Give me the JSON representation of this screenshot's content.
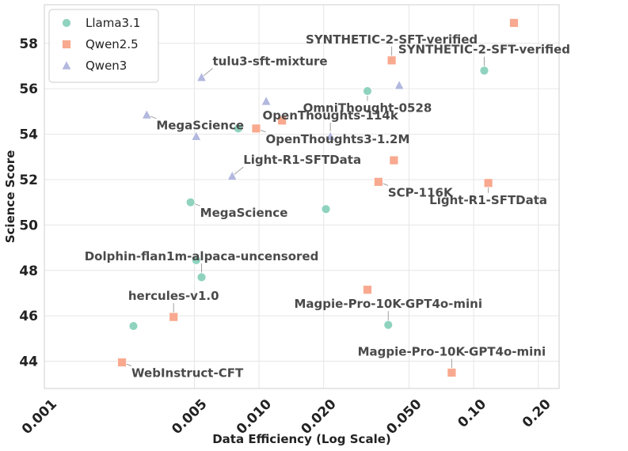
{
  "chart_data": {
    "type": "scatter",
    "title": "",
    "xlabel": "Data Efficiency (Log Scale)",
    "ylabel": "Science Score",
    "xscale": "log",
    "xlim": [
      0.001,
      0.25
    ],
    "ylim": [
      42.8,
      59.7
    ],
    "grid": true,
    "legend_position": "top-left",
    "x_ticks": [
      {
        "value": 0.001,
        "label": "0.001"
      },
      {
        "value": 0.005,
        "label": "0.005"
      },
      {
        "value": 0.01,
        "label": "0.010"
      },
      {
        "value": 0.02,
        "label": "0.020"
      },
      {
        "value": 0.05,
        "label": "0.050"
      },
      {
        "value": 0.1,
        "label": "0.10"
      },
      {
        "value": 0.2,
        "label": "0.20"
      }
    ],
    "y_ticks": [
      {
        "value": 44,
        "label": "44"
      },
      {
        "value": 46,
        "label": "46"
      },
      {
        "value": 48,
        "label": "48"
      },
      {
        "value": 50,
        "label": "50"
      },
      {
        "value": 52,
        "label": "52"
      },
      {
        "value": 54,
        "label": "54"
      },
      {
        "value": 56,
        "label": "56"
      },
      {
        "value": 58,
        "label": "58"
      }
    ],
    "series": [
      {
        "name": "Llama3.1",
        "marker": "circle",
        "color": "#8fd3bf",
        "points": [
          {
            "x": 0.0026,
            "y": 45.55
          },
          {
            "x": 0.0048,
            "y": 51.0
          },
          {
            "x": 0.0051,
            "y": 48.45
          },
          {
            "x": 0.0054,
            "y": 47.7
          },
          {
            "x": 0.008,
            "y": 54.25
          },
          {
            "x": 0.0205,
            "y": 50.7
          },
          {
            "x": 0.032,
            "y": 55.9
          },
          {
            "x": 0.04,
            "y": 45.6
          },
          {
            "x": 0.112,
            "y": 56.8
          }
        ]
      },
      {
        "name": "Qwen2.5",
        "marker": "square",
        "color": "#f8a98f",
        "points": [
          {
            "x": 0.0023,
            "y": 43.95
          },
          {
            "x": 0.004,
            "y": 45.95
          },
          {
            "x": 0.0097,
            "y": 54.25
          },
          {
            "x": 0.0128,
            "y": 54.6
          },
          {
            "x": 0.032,
            "y": 47.15
          },
          {
            "x": 0.036,
            "y": 51.9
          },
          {
            "x": 0.0415,
            "y": 57.25
          },
          {
            "x": 0.0425,
            "y": 52.85
          },
          {
            "x": 0.079,
            "y": 43.5
          },
          {
            "x": 0.117,
            "y": 51.85
          },
          {
            "x": 0.154,
            "y": 58.9
          }
        ]
      },
      {
        "name": "Qwen3",
        "marker": "triangle",
        "color": "#b3b8de",
        "points": [
          {
            "x": 0.003,
            "y": 54.85
          },
          {
            "x": 0.0051,
            "y": 53.9
          },
          {
            "x": 0.0054,
            "y": 56.5
          },
          {
            "x": 0.0075,
            "y": 52.15
          },
          {
            "x": 0.0108,
            "y": 55.45
          },
          {
            "x": 0.0215,
            "y": 53.9
          },
          {
            "x": 0.045,
            "y": 56.15
          }
        ]
      }
    ],
    "annotations": [
      {
        "text": "tulu3-sft-mixture",
        "x": 0.0054,
        "y": 56.5,
        "anchor": "right-up"
      },
      {
        "text": "MegaScience",
        "x": 0.003,
        "y": 54.85,
        "anchor": "right-down"
      },
      {
        "text": "SYNTHETIC-2-SFT-verified",
        "x": 0.0415,
        "y": 57.25,
        "anchor": "up"
      },
      {
        "text": "SYNTHETIC-2-SFT-verified",
        "x": 0.112,
        "y": 56.8,
        "anchor": "up"
      },
      {
        "text": "OmniThought-0528",
        "x": 0.032,
        "y": 55.9,
        "anchor": "down"
      },
      {
        "text": "OpenThoughts-114k",
        "x": 0.0215,
        "y": 53.9,
        "anchor": "up"
      },
      {
        "text": "OpenThoughts3-1.2M",
        "x": 0.0097,
        "y": 54.25,
        "anchor": "right-down"
      },
      {
        "text": "Light-R1-SFTData",
        "x": 0.0075,
        "y": 52.15,
        "anchor": "right-up"
      },
      {
        "text": "SCP-116K",
        "x": 0.036,
        "y": 51.9,
        "anchor": "right-down"
      },
      {
        "text": "Light-R1-SFTData",
        "x": 0.117,
        "y": 51.85,
        "anchor": "down"
      },
      {
        "text": "MegaScience",
        "x": 0.0048,
        "y": 51.0,
        "anchor": "right-down"
      },
      {
        "text": "Dolphin-flan1m-alpaca-uncensored",
        "x": 0.0054,
        "y": 47.7,
        "anchor": "up"
      },
      {
        "text": "hercules-v1.0",
        "x": 0.004,
        "y": 45.95,
        "anchor": "up"
      },
      {
        "text": "Magpie-Pro-10K-GPT4o-mini",
        "x": 0.04,
        "y": 45.6,
        "anchor": "up"
      },
      {
        "text": "Magpie-Pro-10K-GPT4o-mini",
        "x": 0.079,
        "y": 43.5,
        "anchor": "up"
      },
      {
        "text": "WebInstruct-CFT",
        "x": 0.0023,
        "y": 43.95,
        "anchor": "right-down"
      }
    ]
  }
}
